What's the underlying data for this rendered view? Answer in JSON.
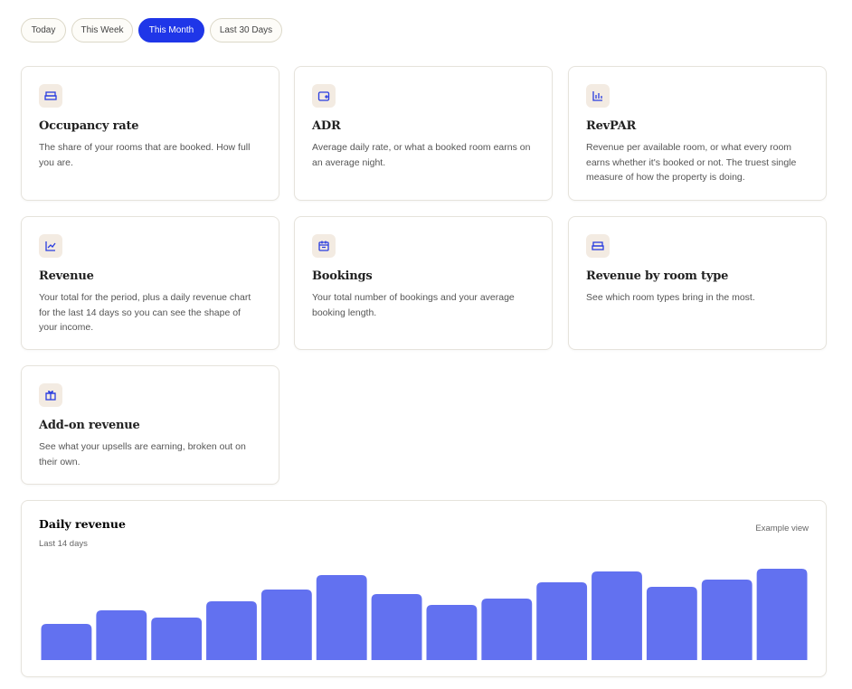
{
  "tabs": [
    {
      "label": "Today",
      "active": false
    },
    {
      "label": "This Week",
      "active": false
    },
    {
      "label": "This Month",
      "active": true
    },
    {
      "label": "Last 30 Days",
      "active": false
    }
  ],
  "cards": [
    {
      "title": "Occupancy rate",
      "description": "The share of your rooms that are booked. How full you are."
    },
    {
      "title": "ADR",
      "description": "Average daily rate, or what a booked room earns on an average night."
    },
    {
      "title": "RevPAR",
      "description": "Revenue per available room, or what every room earns whether it's booked or not. The truest single measure of how the property is doing."
    },
    {
      "title": "Revenue",
      "description": "Your total for the period, plus a daily revenue chart for the last 14 days so you can see the shape of your income."
    },
    {
      "title": "Bookings",
      "description": "Your total number of bookings and your average booking length."
    },
    {
      "title": "Revenue by room type",
      "description": "See which room types bring in the most."
    },
    {
      "title": "Add-on revenue",
      "description": "See what your upsells are earning, broken out on their own."
    }
  ],
  "chart_data": {
    "type": "bar",
    "title": "Daily revenue",
    "subtitle": "Last 14 days",
    "annotation": "Example view",
    "categories": [
      null,
      null,
      null,
      null,
      null,
      null,
      null,
      null,
      null,
      null,
      null,
      null,
      null,
      null
    ],
    "values": [
      40,
      55,
      47,
      65,
      78,
      94,
      73,
      61,
      68,
      86,
      98,
      81,
      89,
      101
    ],
    "color": "#6271f0",
    "ylim": [
      0,
      110
    ],
    "grid": false
  }
}
